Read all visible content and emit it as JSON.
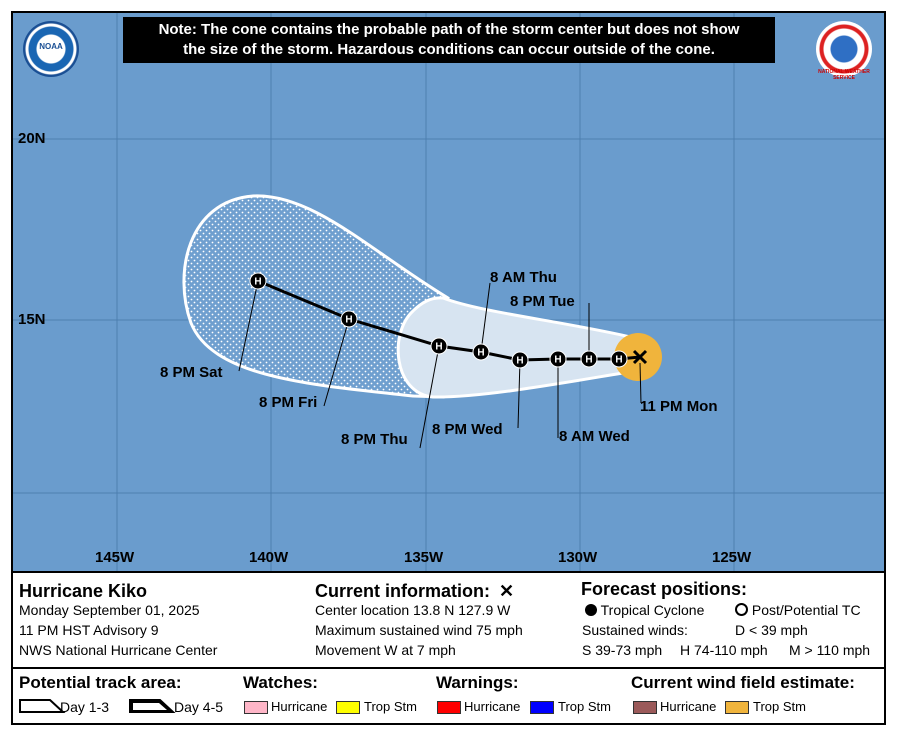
{
  "note": {
    "line1": "Note: The cone contains the probable path of the storm center but does not show",
    "line2": "the size of the storm. Hazardous conditions can occur outside of the cone."
  },
  "logos": {
    "left_text": "NOAA",
    "right_text": "NATIONAL WEATHER SERVICE"
  },
  "axes": {
    "lat_labels": [
      "20N",
      "15N"
    ],
    "lon_labels": [
      "145W",
      "140W",
      "135W",
      "130W",
      "125W"
    ]
  },
  "track_labels": {
    "sat": "8 PM Sat",
    "fri": "8 PM Fri",
    "thu_pm": "8 PM Thu",
    "wed_pm": "8 PM Wed",
    "wed_am": "8 AM Wed",
    "thu_am": "8 AM Thu",
    "tue_pm": "8 PM Tue",
    "mon": "11 PM Mon"
  },
  "point_marker": "H",
  "storm": {
    "name": "Hurricane Kiko",
    "date": "Monday September 01, 2025",
    "advisory": "11 PM HST Advisory 9",
    "center": "NWS National Hurricane Center"
  },
  "current": {
    "title": "Current information:",
    "location": "Center location 13.8 N 127.9 W",
    "wind": "Maximum sustained wind 75 mph",
    "movement": "Movement W at 7 mph"
  },
  "forecast": {
    "title": "Forecast positions:",
    "tropical": "Tropical Cyclone",
    "post": "Post/Potential TC",
    "sustained": "Sustained winds:",
    "d": "D < 39 mph",
    "s": "S 39-73 mph",
    "h": "H 74-110 mph",
    "m": "M > 110 mph"
  },
  "legend": {
    "track_title": "Potential track area:",
    "day13": "Day 1-3",
    "day45": "Day 4-5",
    "watches_title": "Watches:",
    "warnings_title": "Warnings:",
    "wind_title": "Current wind field estimate:",
    "hurricane": "Hurricane",
    "trop_stm": "Trop Stm",
    "colors": {
      "watch_hurricane": "#ffb6c8",
      "watch_trop": "#ffff00",
      "warn_hurricane": "#ff0000",
      "warn_trop": "#0000ff",
      "wind_hurricane": "#9b5a5a",
      "wind_trop": "#f0b43c"
    }
  },
  "colors": {
    "ocean": "#6a9ccd",
    "cone": "#d7e4f1",
    "wind_field": "#f0b43c"
  }
}
